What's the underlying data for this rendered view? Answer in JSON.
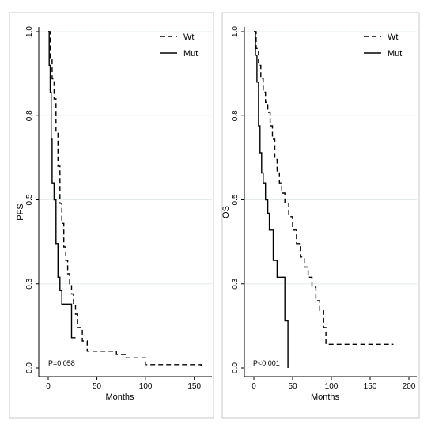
{
  "chart_data": [
    {
      "type": "line",
      "title": "",
      "xlabel": "Months",
      "ylabel": "PFS",
      "xlim": [
        0,
        160
      ],
      "ylim": [
        0,
        1
      ],
      "x_ticks": [
        0,
        50,
        100,
        150
      ],
      "x_tick_labels": [
        "0",
        "50",
        "100",
        "150"
      ],
      "y_ticks": [
        0,
        0.25,
        0.5,
        0.75,
        1
      ],
      "y_tick_labels": [
        "0.0",
        "0.3",
        "0.5",
        "0.8",
        "1.0"
      ],
      "grid": "horizontal",
      "legend_position": "top-right",
      "annotation": "P=0.058",
      "series": [
        {
          "name": "Wt",
          "line_style": "dashed",
          "x": [
            0,
            2,
            4,
            6,
            8,
            10,
            12,
            14,
            16,
            18,
            20,
            22,
            24,
            26,
            28,
            30,
            35,
            40,
            60,
            70,
            75,
            80,
            100,
            155,
            157
          ],
          "y": [
            1.0,
            0.92,
            0.86,
            0.8,
            0.7,
            0.6,
            0.49,
            0.43,
            0.36,
            0.32,
            0.28,
            0.25,
            0.22,
            0.19,
            0.16,
            0.12,
            0.08,
            0.05,
            0.05,
            0.04,
            0.04,
            0.03,
            0.01,
            0.01,
            0.0
          ]
        },
        {
          "name": "Mut",
          "line_style": "solid",
          "x": [
            0,
            1,
            2,
            3,
            4,
            6,
            8,
            10,
            12,
            14,
            18,
            24,
            28
          ],
          "y": [
            1.0,
            0.9,
            0.82,
            0.68,
            0.55,
            0.5,
            0.37,
            0.27,
            0.23,
            0.19,
            0.19,
            0.09,
            0.09
          ]
        }
      ]
    },
    {
      "type": "line",
      "title": "",
      "xlabel": "Months",
      "ylabel": "OS",
      "xlim": [
        0,
        200
      ],
      "ylim": [
        0,
        1
      ],
      "x_ticks": [
        0,
        50,
        100,
        150,
        200
      ],
      "x_tick_labels": [
        "0",
        "50",
        "100",
        "150",
        "200"
      ],
      "y_ticks": [
        0,
        0.25,
        0.5,
        0.75,
        1
      ],
      "y_tick_labels": [
        "0.0",
        "0.3",
        "0.5",
        "0.8",
        "1.0"
      ],
      "grid": "horizontal",
      "legend_position": "top-right",
      "annotation": "P<0.001",
      "series": [
        {
          "name": "Wt",
          "line_style": "dashed",
          "x": [
            0,
            3,
            6,
            9,
            12,
            15,
            18,
            21,
            24,
            27,
            30,
            33,
            36,
            40,
            45,
            50,
            55,
            60,
            65,
            70,
            75,
            80,
            85,
            90,
            93,
            100,
            120,
            180
          ],
          "y": [
            1.0,
            0.95,
            0.9,
            0.86,
            0.82,
            0.79,
            0.76,
            0.72,
            0.68,
            0.62,
            0.58,
            0.55,
            0.52,
            0.49,
            0.45,
            0.41,
            0.37,
            0.33,
            0.3,
            0.27,
            0.24,
            0.2,
            0.17,
            0.12,
            0.07,
            0.07,
            0.07,
            0.07
          ]
        },
        {
          "name": "Mut",
          "line_style": "solid",
          "x": [
            0,
            2,
            4,
            6,
            8,
            10,
            12,
            15,
            18,
            20,
            25,
            30,
            35,
            40,
            44
          ],
          "y": [
            1.0,
            0.93,
            0.85,
            0.72,
            0.64,
            0.58,
            0.55,
            0.5,
            0.46,
            0.41,
            0.32,
            0.27,
            0.27,
            0.14,
            0.0
          ]
        }
      ]
    }
  ]
}
